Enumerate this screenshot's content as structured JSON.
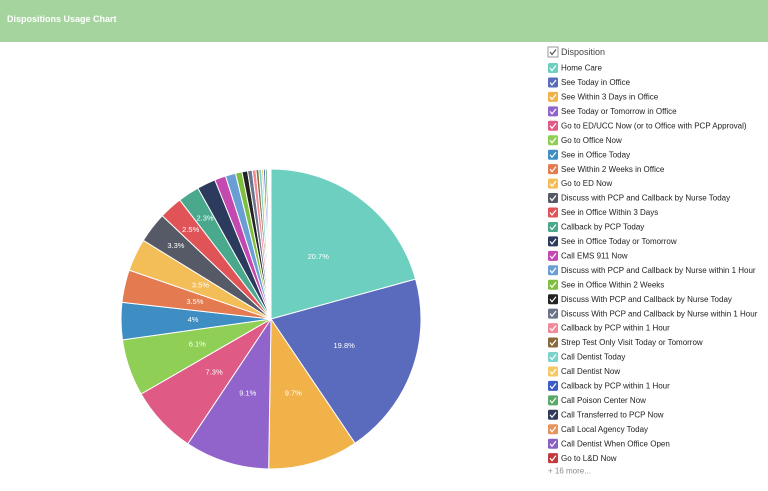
{
  "chart_data": {
    "type": "pie",
    "title": "Dispositions Usage Chart",
    "legend_title": "Disposition",
    "more_label": "+ 16 more...",
    "categories": [
      "Home Care",
      "See Today in Office",
      "See Within 3 Days in Office",
      "See Today or Tomorrow in Office",
      "Go to ED/UCC Now (or to Office with PCP Approval)",
      "Go to Office Now",
      "See in Office Today",
      "See Within 2 Weeks in Office",
      "Go to ED Now",
      "Discuss with PCP and Callback by Nurse Today",
      "See in Office Within 3 Days",
      "Callback by PCP Today",
      "See in Office Today or Tomorrow",
      "Call EMS 911 Now",
      "Discuss with PCP and Callback by Nurse within 1 Hour",
      "See in Office Within 2 Weeks",
      "Discuss With PCP and Callback by Nurse Today",
      "Discuss With PCP and Callback by Nurse within 1 Hour",
      "Callback by PCP within 1 Hour",
      "Strep Test Only Visit Today or Tomorrow",
      "Call Dentist Today",
      "Call Dentist Now",
      "Callback by PCP within 1 Hour",
      "Call Poison Center Now",
      "Call Transferred to PCP Now",
      "Call Local Agency Today",
      "Call Dentist When Office Open",
      "Go to L&D Now"
    ],
    "values": [
      20.7,
      19.8,
      9.7,
      9.1,
      7.3,
      6.1,
      4,
      3.5,
      3.5,
      3.3,
      2.5,
      2.3,
      2.0,
      1.2,
      1.1,
      0.7,
      0.6,
      0.5,
      0.4,
      0.3,
      0.3,
      0.2,
      0.2,
      0.2,
      0.1,
      0.1,
      0.1,
      0.1
    ],
    "value_labels": [
      "20.7%",
      "19.8%",
      "9.7%",
      "9.1%",
      "7.3%",
      "6.1%",
      "4%",
      "3.5%",
      "3.5%",
      "3.3%",
      "2.5%",
      "2.3%",
      null,
      null,
      null,
      null,
      null,
      null,
      null,
      null,
      null,
      null,
      null,
      null,
      null,
      null,
      null,
      null
    ],
    "colors": [
      "#6dcfc0",
      "#5a6bbd",
      "#f2b24a",
      "#9164cc",
      "#e05a86",
      "#8fcf55",
      "#3e8ec4",
      "#e47a4f",
      "#f3bd57",
      "#555a66",
      "#e05357",
      "#4aa88c",
      "#2c3a5e",
      "#c348b0",
      "#6a9fd6",
      "#7fbf3f",
      "#232323",
      "#6b7489",
      "#f08a9a",
      "#8a6a3a",
      "#7cd3cb",
      "#f5c866",
      "#3a5cc4",
      "#5aa86a",
      "#2f3a58",
      "#e8935a",
      "#8a5fc2",
      "#c0393c"
    ]
  }
}
